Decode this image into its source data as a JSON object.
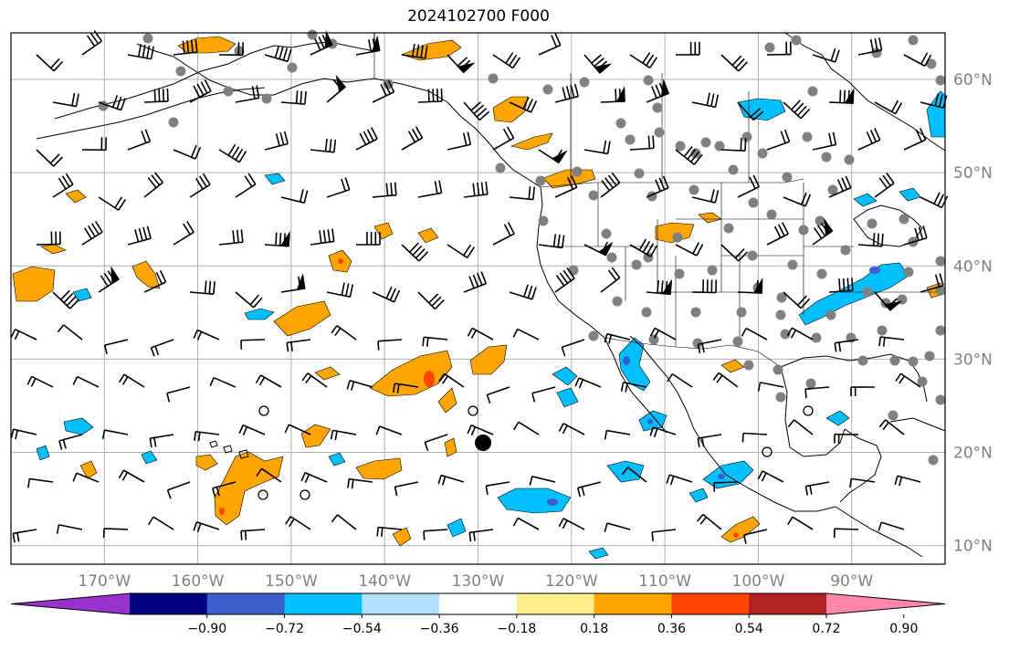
{
  "title": "2024102700 F000",
  "lat_labels": [
    {
      "text": "60°N",
      "lat": 60
    },
    {
      "text": "50°N",
      "lat": 50
    },
    {
      "text": "40°N",
      "lat": 40
    },
    {
      "text": "30°N",
      "lat": 30
    },
    {
      "text": "20°N",
      "lat": 20
    },
    {
      "text": "10°N",
      "lat": 10
    }
  ],
  "lon_labels": [
    {
      "text": "170°W",
      "lon": -170
    },
    {
      "text": "160°W",
      "lon": -160
    },
    {
      "text": "150°W",
      "lon": -150
    },
    {
      "text": "140°W",
      "lon": -140
    },
    {
      "text": "130°W",
      "lon": -130
    },
    {
      "text": "120°W",
      "lon": -120
    },
    {
      "text": "110°W",
      "lon": -110
    },
    {
      "text": "100°W",
      "lon": -100
    },
    {
      "text": "90°W",
      "lon": -90
    }
  ],
  "extent": {
    "lon_min": -180,
    "lon_max": -80,
    "lat_min": 8,
    "lat_max": 65
  },
  "colorbar": {
    "colors": [
      "#9932CC",
      "#000080",
      "#3A5FCD",
      "#00BFFF",
      "#B0E2FF",
      "#FFFFFF",
      "#FFEC8B",
      "#FFA500",
      "#FF4500",
      "#B22222",
      "#FF88AA"
    ],
    "ticks": [
      "−0.90",
      "−0.72",
      "−0.54",
      "−0.36",
      "−0.18",
      "0.18",
      "0.36",
      "0.54",
      "0.72",
      "0.90"
    ]
  },
  "colors": {
    "orange": "#FFA500",
    "red": "#FF4500",
    "cyan": "#00BFFF",
    "blue": "#3A5FCD",
    "station": "#808080",
    "grid": "#B0B0B0"
  }
}
